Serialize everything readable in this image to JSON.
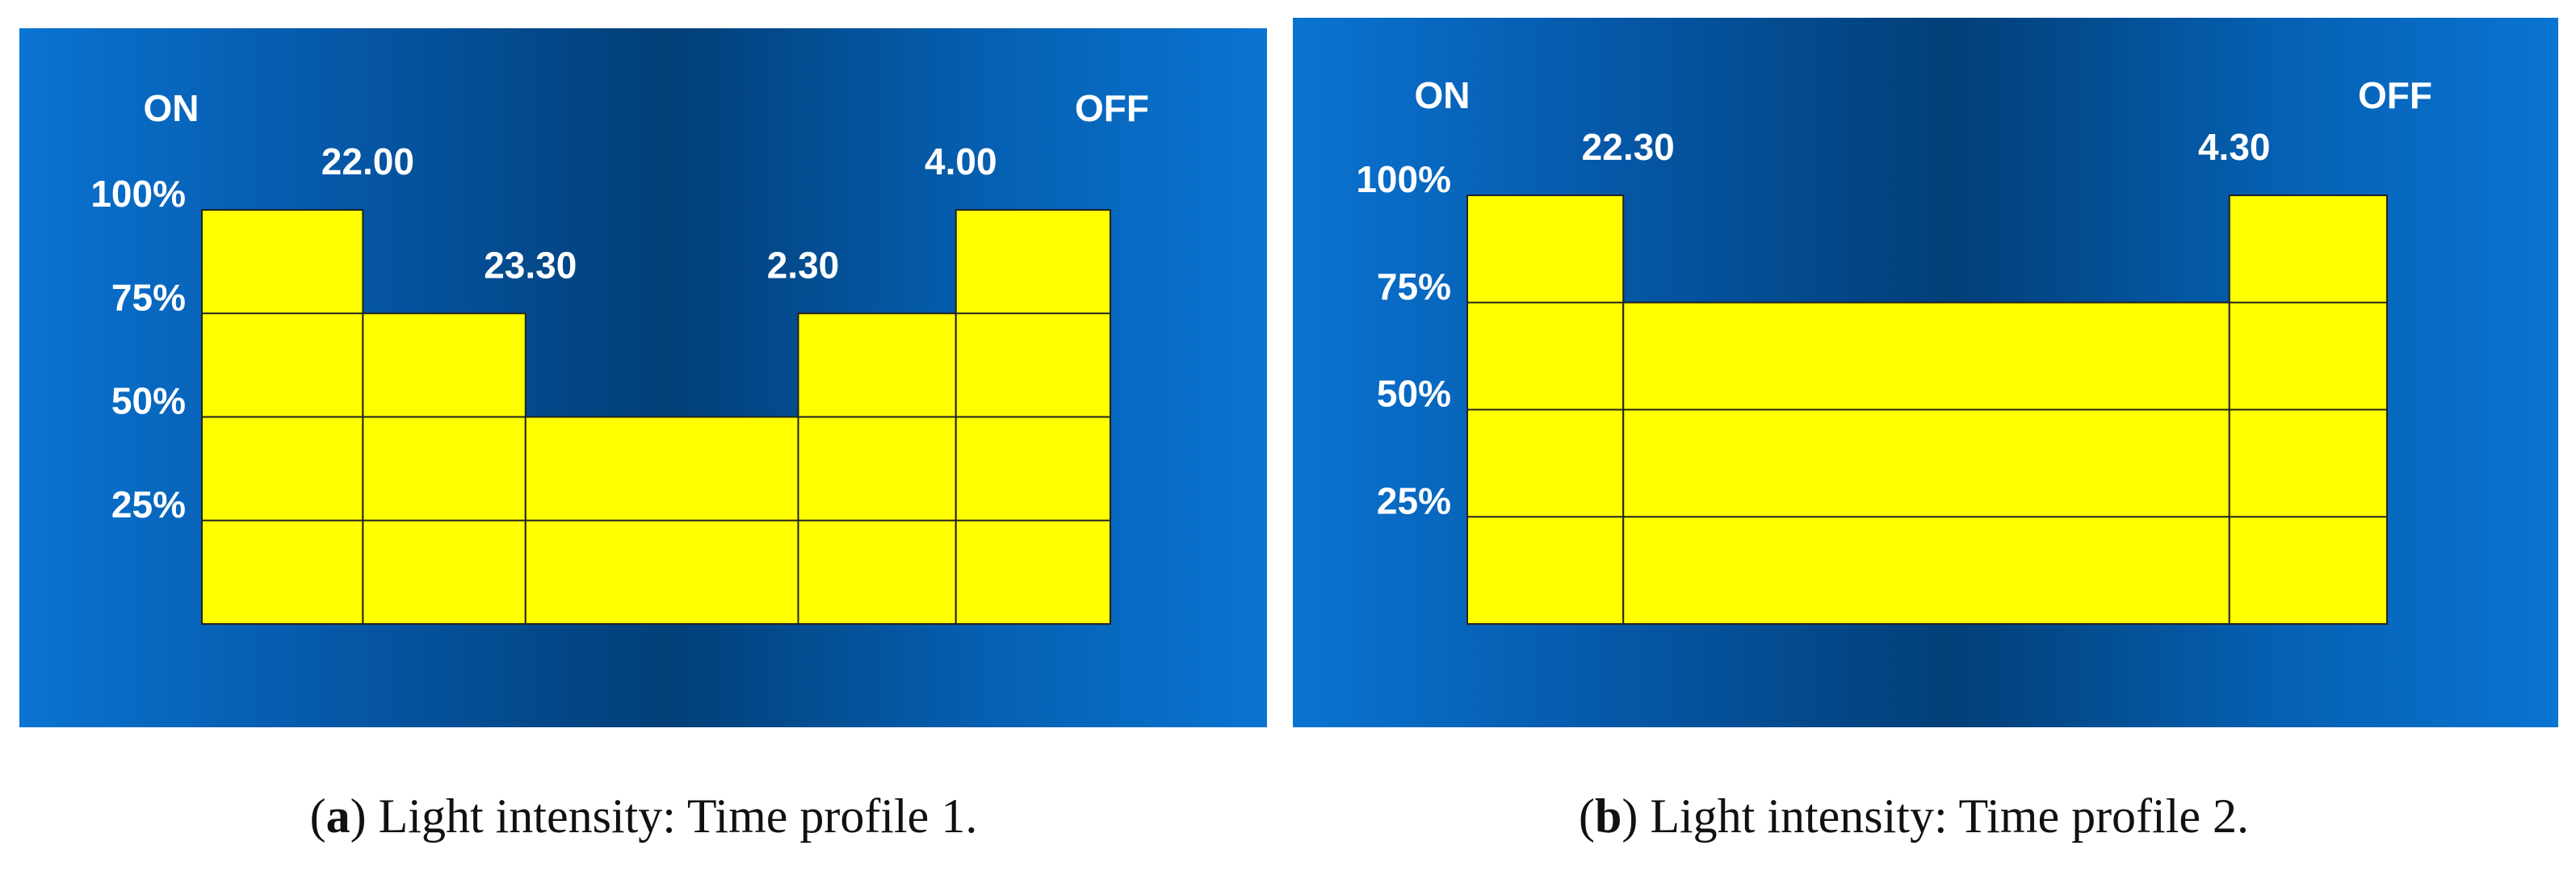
{
  "chart_data": [
    {
      "type": "bar",
      "on_label": "ON",
      "off_label": "OFF",
      "values": [
        100,
        75,
        50,
        75,
        100
      ],
      "time_labels": [
        "22.00",
        "23.30",
        "2.30",
        "4.00"
      ],
      "ylim": [
        0,
        100
      ],
      "yticks": [
        {
          "value": 25,
          "label": "25%"
        },
        {
          "value": 50,
          "label": "50%"
        },
        {
          "value": 75,
          "label": "75%"
        },
        {
          "value": 100,
          "label": "100%"
        }
      ],
      "grid": true,
      "color": "#ffff00",
      "caption": {
        "open": "(",
        "tag": "a",
        "text": ") Light intensity: Time profile 1."
      }
    },
    {
      "type": "bar",
      "on_label": "ON",
      "off_label": "OFF",
      "values": [
        100,
        75,
        100
      ],
      "time_labels": [
        "22.30",
        "4.30"
      ],
      "ylim": [
        0,
        100
      ],
      "yticks": [
        {
          "value": 25,
          "label": "25%"
        },
        {
          "value": 50,
          "label": "50%"
        },
        {
          "value": 75,
          "label": "75%"
        },
        {
          "value": 100,
          "label": "100%"
        }
      ],
      "grid": true,
      "color": "#ffff00",
      "caption": {
        "open": "(",
        "tag": "b",
        "text": ") Light intensity: Time profile 2."
      }
    }
  ]
}
